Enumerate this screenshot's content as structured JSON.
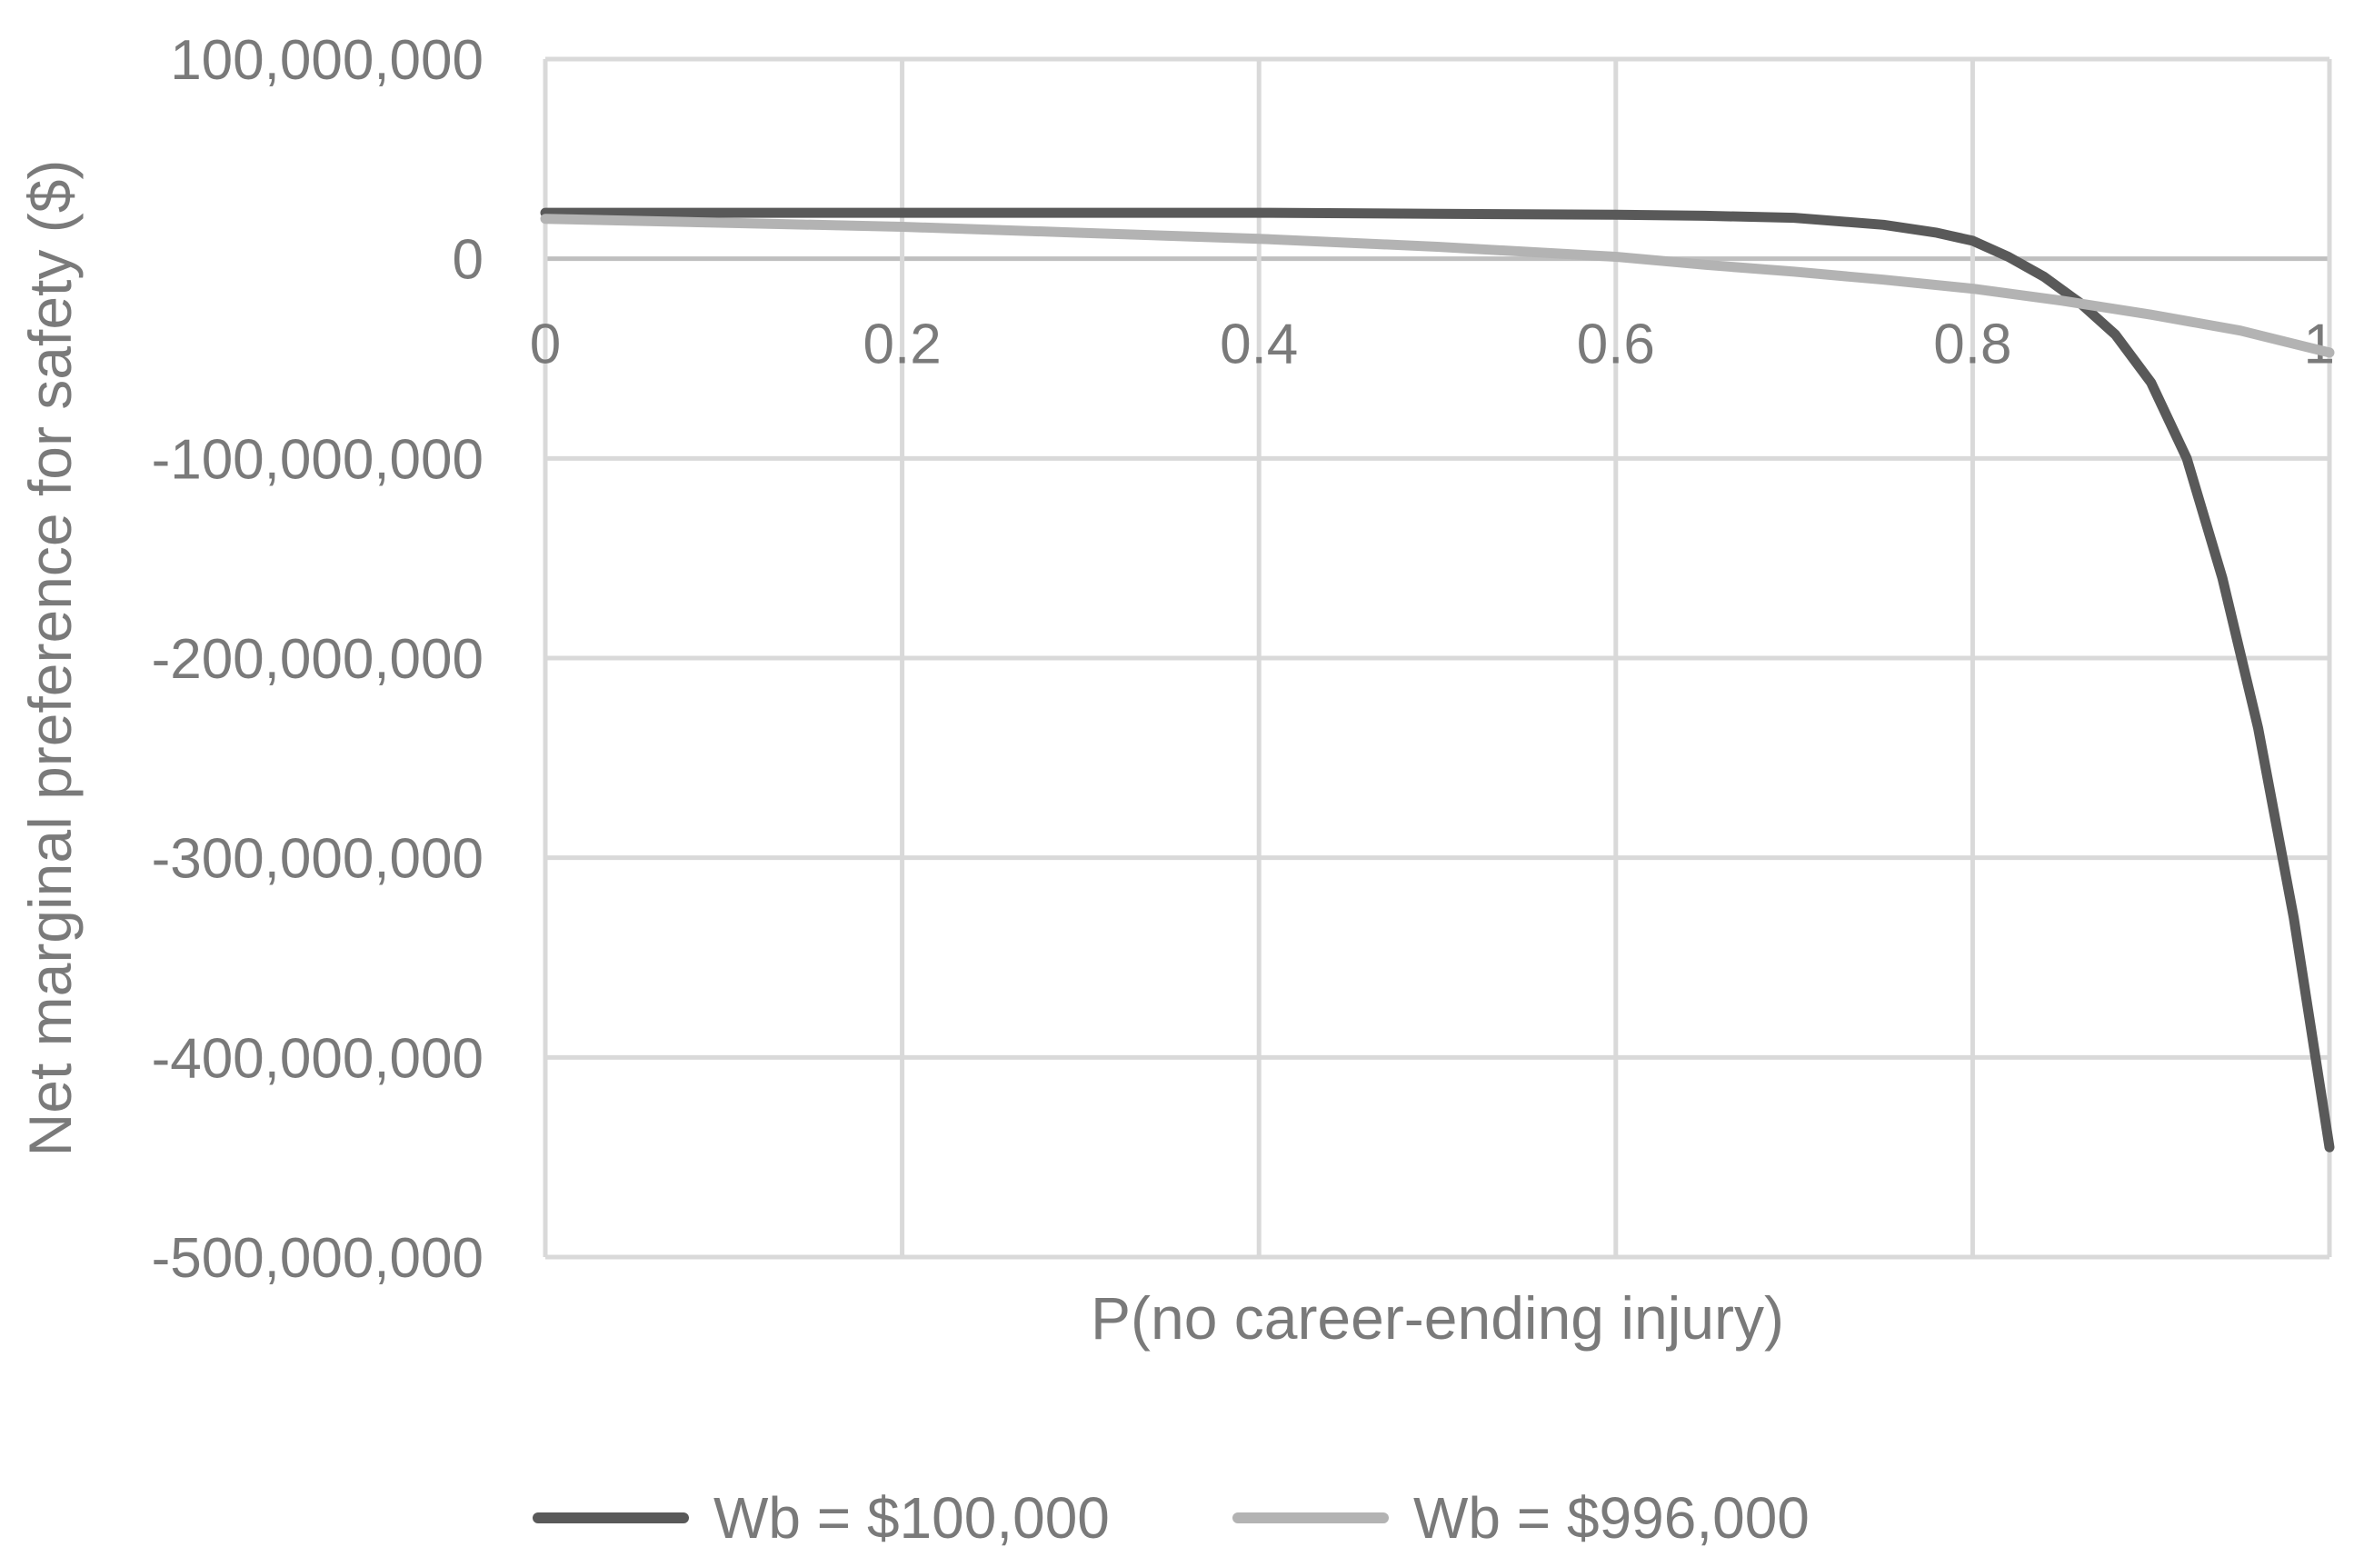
{
  "chart_data": {
    "type": "line",
    "title": "",
    "xlabel": "P(no career-ending injury)",
    "ylabel": "Net marginal preference for safety ($)",
    "xlim": [
      0,
      1
    ],
    "ylim": [
      -500000000,
      100000000
    ],
    "x_ticks": [
      0,
      0.2,
      0.4,
      0.6,
      0.8,
      1
    ],
    "x_tick_labels": [
      "0",
      "0.2",
      "0.4",
      "0.6",
      "0.8",
      "1"
    ],
    "y_ticks": [
      100000000,
      0,
      -100000000,
      -200000000,
      -300000000,
      -400000000,
      -500000000
    ],
    "y_tick_labels": [
      "100,000,000",
      "0",
      "-100,000,000",
      "-200,000,000",
      "-300,000,000",
      "-400,000,000",
      "-500,000,000"
    ],
    "grid": true,
    "legend_position": "bottom",
    "series": [
      {
        "name": "Wb = $100,000",
        "color": "#595959",
        "x": [
          0,
          0.1,
          0.2,
          0.3,
          0.4,
          0.5,
          0.6,
          0.65,
          0.7,
          0.75,
          0.78,
          0.8,
          0.82,
          0.84,
          0.86,
          0.88,
          0.9,
          0.92,
          0.94,
          0.96,
          0.98,
          1.0
        ],
        "y": [
          23000000,
          23000000,
          23000000,
          23000000,
          23000000,
          22500000,
          22000000,
          21500000,
          20500000,
          17000000,
          13000000,
          9000000,
          1000000,
          -9000000,
          -22000000,
          -38000000,
          -62000000,
          -100000000,
          -160000000,
          -235000000,
          -330000000,
          -445000000
        ]
      },
      {
        "name": "Wb = $996,000",
        "color": "#b3b3b3",
        "x": [
          0,
          0.1,
          0.2,
          0.3,
          0.4,
          0.5,
          0.6,
          0.65,
          0.7,
          0.75,
          0.8,
          0.85,
          0.9,
          0.95,
          1.0
        ],
        "y": [
          20000000,
          18000000,
          16000000,
          13000000,
          10000000,
          6000000,
          1000000,
          -3000000,
          -6500000,
          -10500000,
          -15000000,
          -21000000,
          -28000000,
          -36000000,
          -47000000
        ]
      }
    ]
  }
}
